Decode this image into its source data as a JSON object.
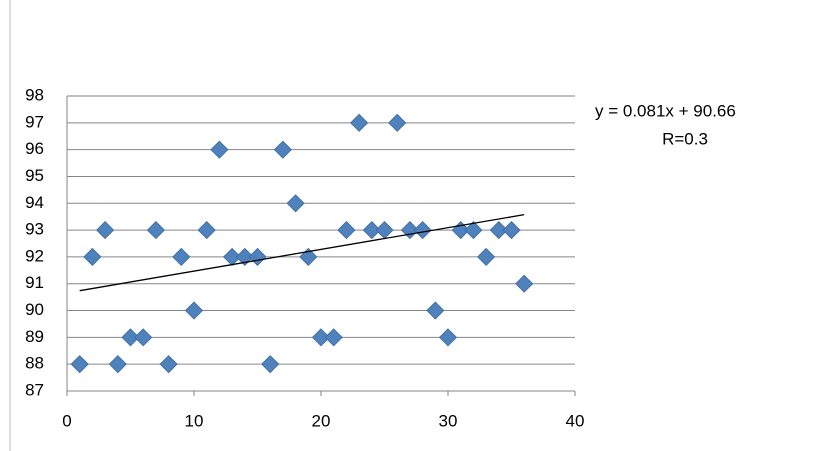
{
  "chart_data": {
    "type": "scatter",
    "series": [
      {
        "color": "#4f81bd",
        "x": [
          1,
          2,
          3,
          4,
          5,
          6,
          7,
          8,
          9,
          10,
          11,
          12,
          13,
          14,
          15,
          16,
          17,
          18,
          19,
          20,
          21,
          22,
          23,
          24,
          25,
          26,
          27,
          28,
          29,
          30,
          31,
          32,
          33,
          34,
          35,
          36
        ],
        "values": [
          88,
          92,
          93,
          88,
          89,
          89,
          93,
          88,
          92,
          90,
          93,
          96,
          92,
          92,
          92,
          88,
          96,
          94,
          92,
          89,
          89,
          93,
          97,
          93,
          93,
          97,
          93,
          93,
          90,
          89,
          93,
          93,
          92,
          93,
          93,
          91
        ]
      }
    ],
    "xlim": [
      0,
      40
    ],
    "xticks": [
      0,
      10,
      20,
      30,
      40
    ],
    "ylim": [
      87,
      98
    ],
    "yticks": [
      87,
      88,
      89,
      90,
      91,
      92,
      93,
      94,
      95,
      96,
      97,
      98
    ],
    "grid": true,
    "trendline": {
      "slope": 0.081,
      "intercept": 90.66,
      "color": "#000000",
      "label": "y = 0.081x + 90.66",
      "r_label": "R=0.3"
    }
  }
}
